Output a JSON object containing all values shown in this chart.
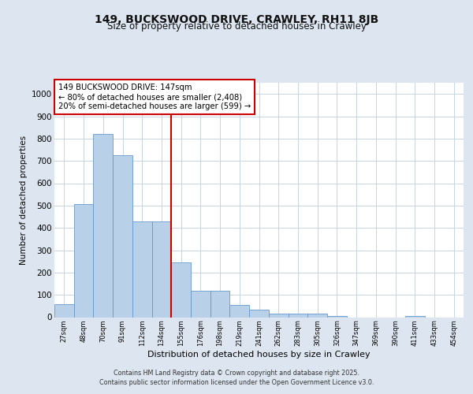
{
  "title": "149, BUCKSWOOD DRIVE, CRAWLEY, RH11 8JB",
  "subtitle": "Size of property relative to detached houses in Crawley",
  "xlabel": "Distribution of detached houses by size in Crawley",
  "ylabel": "Number of detached properties",
  "bin_labels": [
    "27sqm",
    "48sqm",
    "70sqm",
    "91sqm",
    "112sqm",
    "134sqm",
    "155sqm",
    "176sqm",
    "198sqm",
    "219sqm",
    "241sqm",
    "262sqm",
    "283sqm",
    "305sqm",
    "326sqm",
    "347sqm",
    "369sqm",
    "390sqm",
    "411sqm",
    "433sqm",
    "454sqm"
  ],
  "bar_heights": [
    60,
    505,
    820,
    725,
    430,
    430,
    245,
    120,
    120,
    55,
    35,
    15,
    15,
    15,
    5,
    0,
    0,
    0,
    5,
    0,
    0
  ],
  "bar_color": "#b8d0e8",
  "bar_edge_color": "#6699cc",
  "property_line_index": 6,
  "property_line_color": "#cc0000",
  "annotation_text": "149 BUCKSWOOD DRIVE: 147sqm\n← 80% of detached houses are smaller (2,408)\n20% of semi-detached houses are larger (599) →",
  "annotation_box_color": "#ffffff",
  "annotation_box_edge": "#cc0000",
  "ylim": [
    0,
    1050
  ],
  "yticks": [
    0,
    100,
    200,
    300,
    400,
    500,
    600,
    700,
    800,
    900,
    1000
  ],
  "bg_color": "#dde6f0",
  "plot_bg_color": "#ffffff",
  "grid_color": "#c8d4e0",
  "footer_line1": "Contains HM Land Registry data © Crown copyright and database right 2025.",
  "footer_line2": "Contains public sector information licensed under the Open Government Licence v3.0.",
  "title_fontsize": 10,
  "subtitle_fontsize": 8.5,
  "annotation_fontsize": 7.2,
  "ylabel_fontsize": 7.5,
  "xlabel_fontsize": 8
}
